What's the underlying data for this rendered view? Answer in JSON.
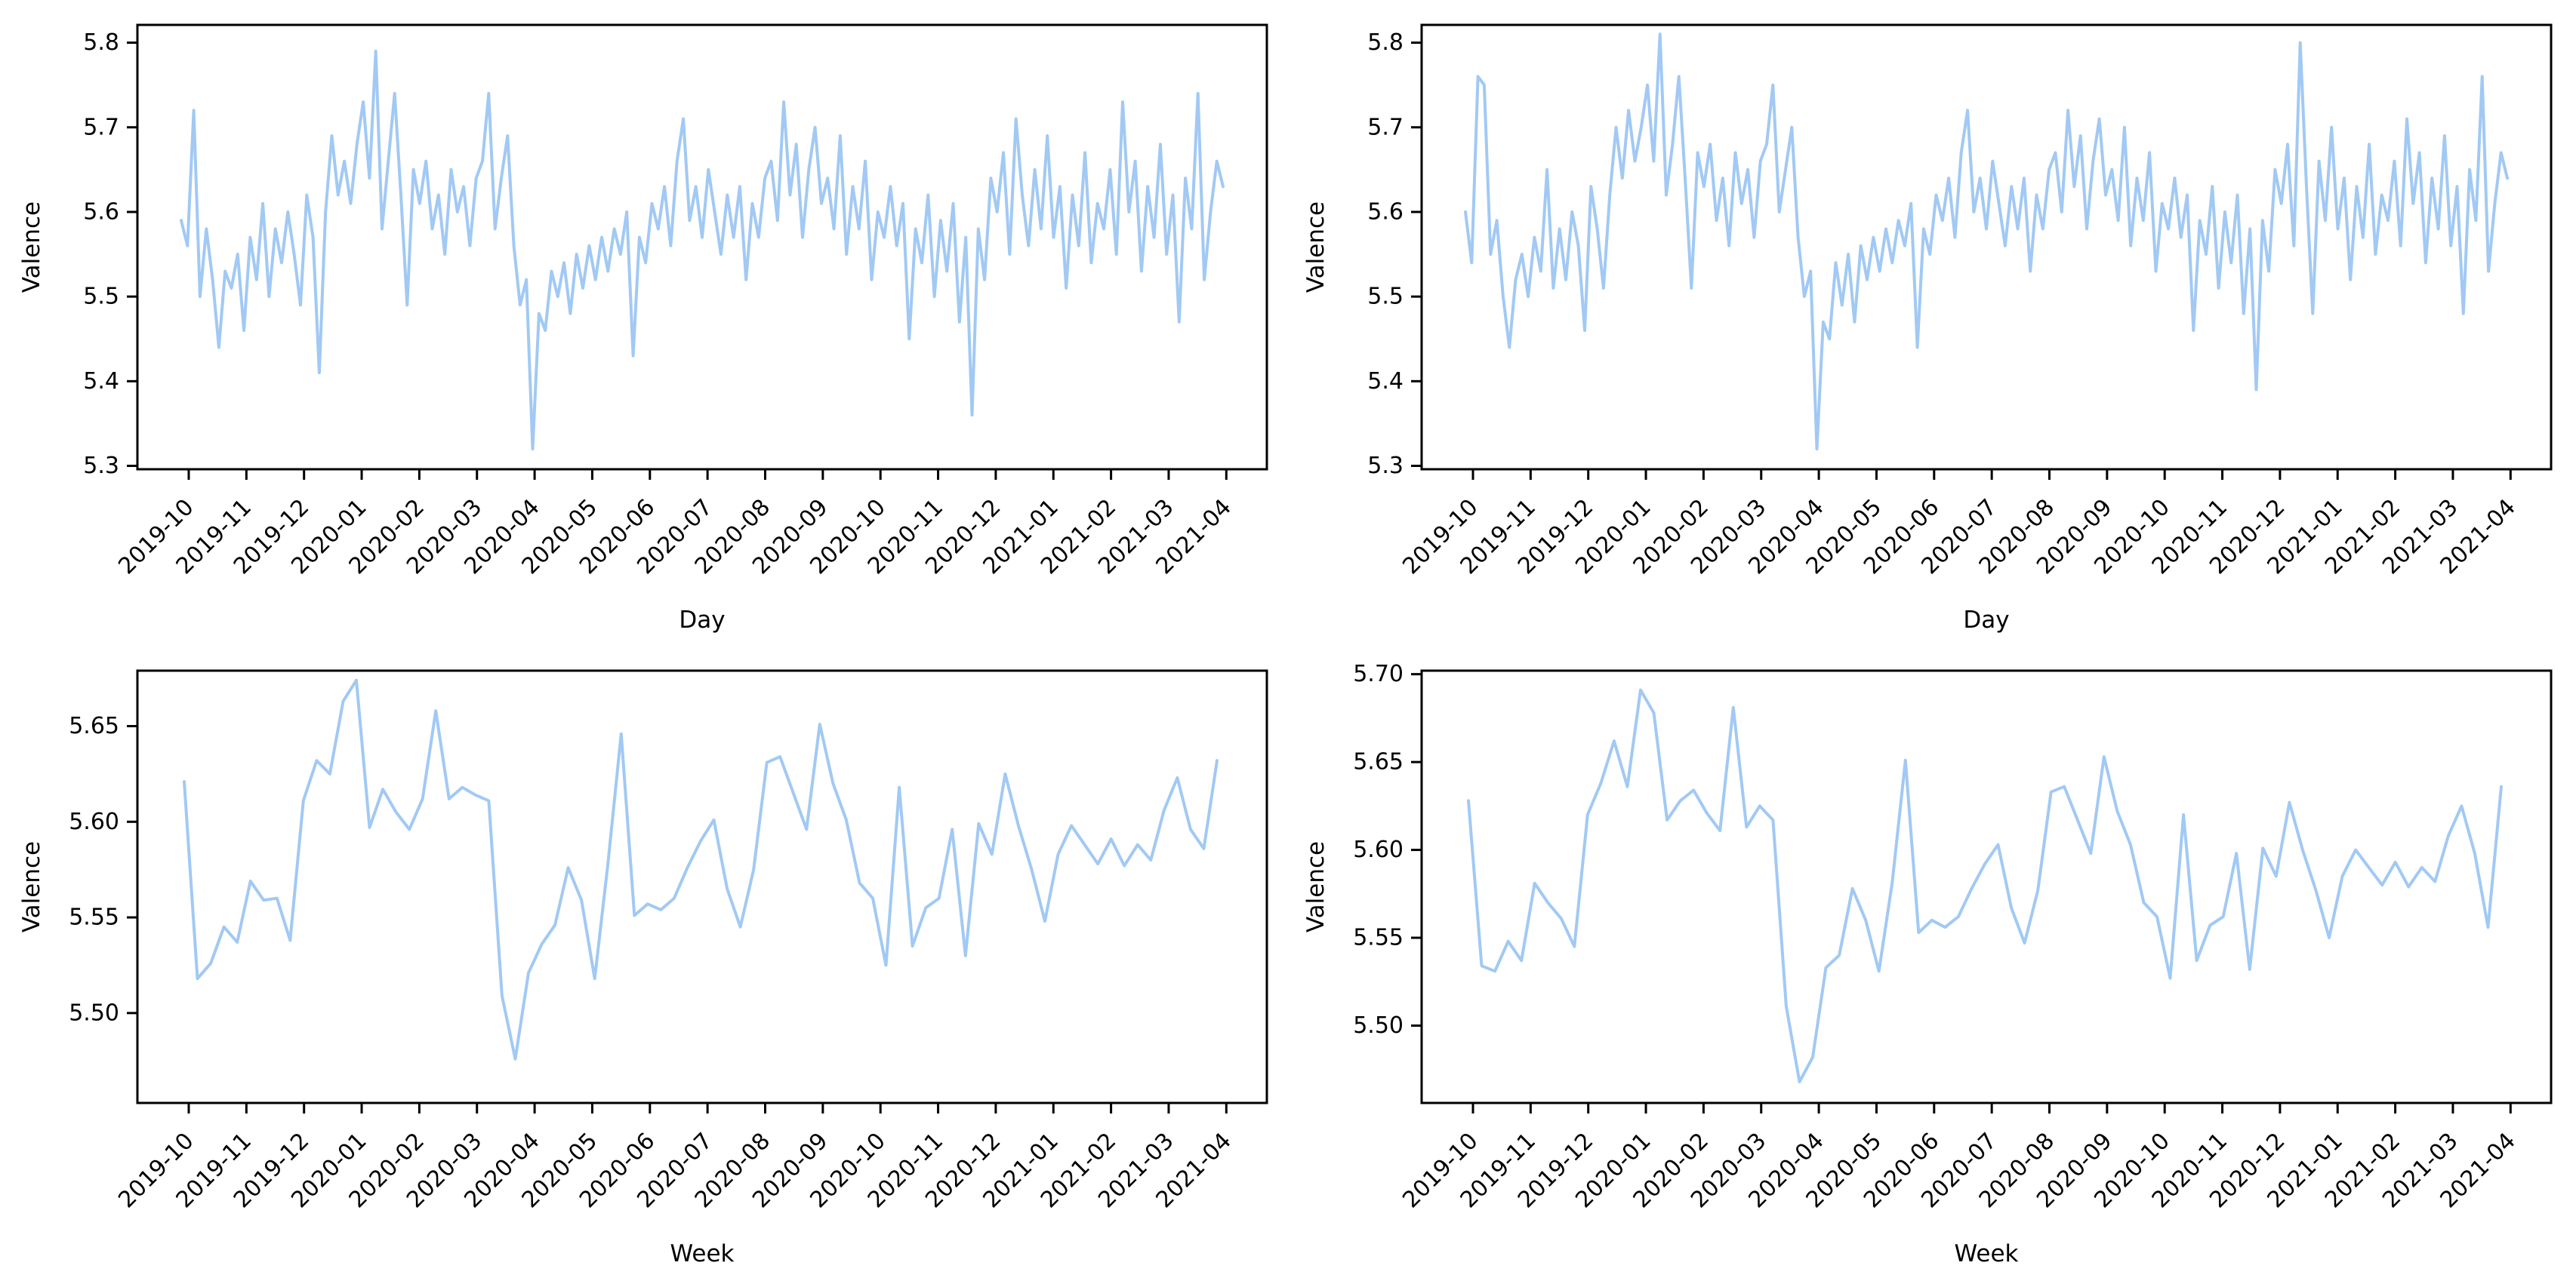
{
  "figure": {
    "background_color": "#ffffff",
    "line_color": "#a1c9f4",
    "axis_color": "#000000",
    "text_color": "#000000"
  },
  "chart_data": [
    {
      "id": "valence-daily-left",
      "type": "line",
      "title": "",
      "xlabel": "Day",
      "ylabel": "Valence",
      "grid": false,
      "legend": false,
      "x_tick_labels": [
        "2019-10",
        "2019-11",
        "2019-12",
        "2020-01",
        "2020-02",
        "2020-03",
        "2020-04",
        "2020-05",
        "2020-06",
        "2020-07",
        "2020-08",
        "2020-09",
        "2020-10",
        "2020-11",
        "2020-12",
        "2021-01",
        "2021-02",
        "2021-03",
        "2021-04"
      ],
      "y_ticks": [
        {
          "value": 5.8,
          "label": "5.8"
        },
        {
          "value": 5.7,
          "label": "5.7"
        },
        {
          "value": 5.6,
          "label": "5.6"
        },
        {
          "value": 5.5,
          "label": "5.5"
        },
        {
          "value": 5.4,
          "label": "5.4"
        },
        {
          "value": 5.3,
          "label": "5.3"
        }
      ],
      "ylim": [
        5.296,
        5.821
      ],
      "x_range": [
        "2019-09-27",
        "2021-03-31"
      ],
      "series": [
        {
          "name": "valence-by-day",
          "color": "#a1c9f4",
          "values": [
            5.59,
            5.56,
            5.72,
            5.5,
            5.58,
            5.52,
            5.44,
            5.53,
            5.51,
            5.55,
            5.46,
            5.57,
            5.52,
            5.61,
            5.5,
            5.58,
            5.54,
            5.6,
            5.55,
            5.49,
            5.62,
            5.57,
            5.41,
            5.6,
            5.69,
            5.62,
            5.66,
            5.61,
            5.68,
            5.73,
            5.64,
            5.79,
            5.58,
            5.66,
            5.74,
            5.62,
            5.49,
            5.65,
            5.61,
            5.66,
            5.58,
            5.62,
            5.55,
            5.65,
            5.6,
            5.63,
            5.56,
            5.64,
            5.66,
            5.74,
            5.58,
            5.64,
            5.69,
            5.56,
            5.49,
            5.52,
            5.32,
            5.48,
            5.46,
            5.53,
            5.5,
            5.54,
            5.48,
            5.55,
            5.51,
            5.56,
            5.52,
            5.57,
            5.53,
            5.58,
            5.55,
            5.6,
            5.43,
            5.57,
            5.54,
            5.61,
            5.58,
            5.63,
            5.56,
            5.66,
            5.71,
            5.59,
            5.63,
            5.57,
            5.65,
            5.6,
            5.55,
            5.62,
            5.57,
            5.63,
            5.52,
            5.61,
            5.57,
            5.64,
            5.66,
            5.59,
            5.73,
            5.62,
            5.68,
            5.57,
            5.65,
            5.7,
            5.61,
            5.64,
            5.58,
            5.69,
            5.55,
            5.63,
            5.58,
            5.66,
            5.52,
            5.6,
            5.57,
            5.63,
            5.56,
            5.61,
            5.45,
            5.58,
            5.54,
            5.62,
            5.5,
            5.59,
            5.53,
            5.61,
            5.47,
            5.57,
            5.36,
            5.58,
            5.52,
            5.64,
            5.6,
            5.67,
            5.55,
            5.71,
            5.62,
            5.56,
            5.65,
            5.58,
            5.69,
            5.57,
            5.63,
            5.51,
            5.62,
            5.56,
            5.67,
            5.54,
            5.61,
            5.58,
            5.65,
            5.55,
            5.73,
            5.6,
            5.66,
            5.53,
            5.63,
            5.57,
            5.68,
            5.55,
            5.62,
            5.47,
            5.64,
            5.58,
            5.74,
            5.52,
            5.6,
            5.66,
            5.63
          ]
        }
      ]
    },
    {
      "id": "valence-daily-right",
      "type": "line",
      "title": "",
      "xlabel": "Day",
      "ylabel": "Valence",
      "grid": false,
      "legend": false,
      "x_tick_labels": [
        "2019-10",
        "2019-11",
        "2019-12",
        "2020-01",
        "2020-02",
        "2020-03",
        "2020-04",
        "2020-05",
        "2020-06",
        "2020-07",
        "2020-08",
        "2020-09",
        "2020-10",
        "2020-11",
        "2020-12",
        "2021-01",
        "2021-02",
        "2021-03",
        "2021-04"
      ],
      "y_ticks": [
        {
          "value": 5.8,
          "label": "5.8"
        },
        {
          "value": 5.7,
          "label": "5.7"
        },
        {
          "value": 5.6,
          "label": "5.6"
        },
        {
          "value": 5.5,
          "label": "5.5"
        },
        {
          "value": 5.4,
          "label": "5.4"
        },
        {
          "value": 5.3,
          "label": "5.3"
        }
      ],
      "ylim": [
        5.296,
        5.821
      ],
      "x_range": [
        "2019-09-27",
        "2021-03-31"
      ],
      "series": [
        {
          "name": "valence-by-day",
          "color": "#a1c9f4",
          "values": [
            5.6,
            5.54,
            5.76,
            5.75,
            5.55,
            5.59,
            5.5,
            5.44,
            5.52,
            5.55,
            5.5,
            5.57,
            5.53,
            5.65,
            5.51,
            5.58,
            5.52,
            5.6,
            5.56,
            5.46,
            5.63,
            5.58,
            5.51,
            5.62,
            5.7,
            5.64,
            5.72,
            5.66,
            5.7,
            5.75,
            5.66,
            5.81,
            5.62,
            5.68,
            5.76,
            5.64,
            5.51,
            5.67,
            5.63,
            5.68,
            5.59,
            5.64,
            5.56,
            5.67,
            5.61,
            5.65,
            5.57,
            5.66,
            5.68,
            5.75,
            5.6,
            5.65,
            5.7,
            5.57,
            5.5,
            5.53,
            5.32,
            5.47,
            5.45,
            5.54,
            5.49,
            5.55,
            5.47,
            5.56,
            5.52,
            5.57,
            5.53,
            5.58,
            5.54,
            5.59,
            5.56,
            5.61,
            5.44,
            5.58,
            5.55,
            5.62,
            5.59,
            5.64,
            5.57,
            5.67,
            5.72,
            5.6,
            5.64,
            5.58,
            5.66,
            5.61,
            5.56,
            5.63,
            5.58,
            5.64,
            5.53,
            5.62,
            5.58,
            5.65,
            5.67,
            5.6,
            5.72,
            5.63,
            5.69,
            5.58,
            5.66,
            5.71,
            5.62,
            5.65,
            5.59,
            5.7,
            5.56,
            5.64,
            5.59,
            5.67,
            5.53,
            5.61,
            5.58,
            5.64,
            5.57,
            5.62,
            5.46,
            5.59,
            5.55,
            5.63,
            5.51,
            5.6,
            5.54,
            5.62,
            5.48,
            5.58,
            5.39,
            5.59,
            5.53,
            5.65,
            5.61,
            5.68,
            5.56,
            5.8,
            5.63,
            5.48,
            5.66,
            5.59,
            5.7,
            5.58,
            5.64,
            5.52,
            5.63,
            5.57,
            5.68,
            5.55,
            5.62,
            5.59,
            5.66,
            5.56,
            5.71,
            5.61,
            5.67,
            5.54,
            5.64,
            5.58,
            5.69,
            5.56,
            5.63,
            5.48,
            5.65,
            5.59,
            5.76,
            5.53,
            5.61,
            5.67,
            5.64
          ]
        }
      ]
    },
    {
      "id": "valence-weekly-left",
      "type": "line",
      "title": "",
      "xlabel": "Week",
      "ylabel": "Valence",
      "grid": false,
      "legend": false,
      "x_tick_labels": [
        "2019-10",
        "2019-11",
        "2019-12",
        "2020-01",
        "2020-02",
        "2020-03",
        "2020-04",
        "2020-05",
        "2020-06",
        "2020-07",
        "2020-08",
        "2020-09",
        "2020-10",
        "2020-11",
        "2020-12",
        "2021-01",
        "2021-02",
        "2021-03",
        "2021-04"
      ],
      "y_ticks": [
        {
          "value": 5.65,
          "label": "5.65"
        },
        {
          "value": 5.6,
          "label": "5.60"
        },
        {
          "value": 5.55,
          "label": "5.55"
        },
        {
          "value": 5.5,
          "label": "5.50"
        }
      ],
      "ylim": [
        5.453,
        5.679
      ],
      "x_range": [
        "2019-09-29",
        "2021-03-28"
      ],
      "series": [
        {
          "name": "valence-by-week",
          "color": "#a1c9f4",
          "values": [
            5.621,
            5.518,
            5.526,
            5.545,
            5.537,
            5.569,
            5.559,
            5.56,
            5.538,
            5.611,
            5.632,
            5.625,
            5.663,
            5.674,
            5.597,
            5.617,
            5.605,
            5.596,
            5.612,
            5.658,
            5.612,
            5.618,
            5.614,
            5.611,
            5.509,
            5.476,
            5.521,
            5.536,
            5.546,
            5.576,
            5.559,
            5.518,
            5.578,
            5.646,
            5.551,
            5.557,
            5.554,
            5.56,
            5.576,
            5.59,
            5.601,
            5.565,
            5.545,
            5.575,
            5.631,
            5.634,
            5.615,
            5.596,
            5.651,
            5.62,
            5.601,
            5.568,
            5.56,
            5.525,
            5.618,
            5.535,
            5.555,
            5.56,
            5.596,
            5.53,
            5.599,
            5.583,
            5.625,
            5.598,
            5.575,
            5.548,
            5.583,
            5.598,
            5.588,
            5.578,
            5.591,
            5.577,
            5.588,
            5.58,
            5.606,
            5.623,
            5.596,
            5.586,
            5.632
          ]
        }
      ]
    },
    {
      "id": "valence-weekly-right",
      "type": "line",
      "title": "",
      "xlabel": "Week",
      "ylabel": "Valence",
      "grid": false,
      "legend": false,
      "x_tick_labels": [
        "2019-10",
        "2019-11",
        "2019-12",
        "2020-01",
        "2020-02",
        "2020-03",
        "2020-04",
        "2020-05",
        "2020-06",
        "2020-07",
        "2020-08",
        "2020-09",
        "2020-10",
        "2020-11",
        "2020-12",
        "2021-01",
        "2021-02",
        "2021-03",
        "2021-04"
      ],
      "y_ticks": [
        {
          "value": 5.7,
          "label": "5.70"
        },
        {
          "value": 5.65,
          "label": "5.65"
        },
        {
          "value": 5.6,
          "label": "5.60"
        },
        {
          "value": 5.55,
          "label": "5.55"
        },
        {
          "value": 5.5,
          "label": "5.50"
        }
      ],
      "ylim": [
        5.456,
        5.702
      ],
      "x_range": [
        "2019-09-29",
        "2021-03-28"
      ],
      "series": [
        {
          "name": "valence-by-week",
          "color": "#a1c9f4",
          "values": [
            5.628,
            5.534,
            5.531,
            5.548,
            5.537,
            5.581,
            5.57,
            5.561,
            5.545,
            5.62,
            5.638,
            5.662,
            5.636,
            5.691,
            5.678,
            5.617,
            5.628,
            5.634,
            5.621,
            5.611,
            5.681,
            5.613,
            5.625,
            5.617,
            5.511,
            5.468,
            5.482,
            5.533,
            5.54,
            5.578,
            5.56,
            5.531,
            5.581,
            5.651,
            5.553,
            5.56,
            5.556,
            5.562,
            5.578,
            5.592,
            5.603,
            5.567,
            5.547,
            5.577,
            5.633,
            5.636,
            5.617,
            5.598,
            5.653,
            5.622,
            5.603,
            5.57,
            5.562,
            5.527,
            5.62,
            5.537,
            5.557,
            5.562,
            5.598,
            5.532,
            5.601,
            5.585,
            5.627,
            5.6,
            5.577,
            5.55,
            5.585,
            5.6,
            5.59,
            5.58,
            5.593,
            5.579,
            5.59,
            5.582,
            5.608,
            5.625,
            5.598,
            5.556,
            5.636
          ]
        }
      ]
    }
  ]
}
